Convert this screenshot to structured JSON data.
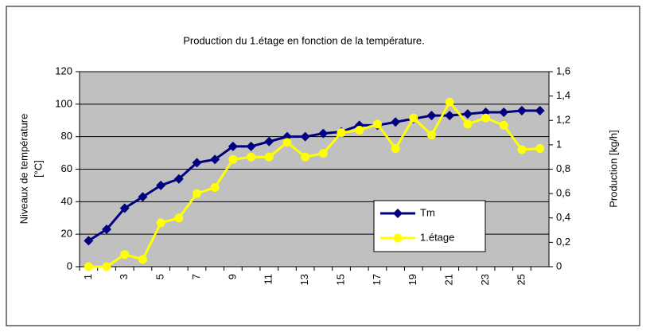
{
  "chart_data": {
    "type": "line",
    "title": "Production du 1.étage en fonction de la température.",
    "ylabel": [
      "Niveaux de température",
      "[°C]"
    ],
    "y2label": "Production [kg/h]",
    "categories": [
      1,
      null,
      3,
      null,
      5,
      null,
      7,
      null,
      9,
      null,
      11,
      null,
      13,
      null,
      15,
      null,
      17,
      null,
      19,
      null,
      21,
      null,
      23,
      null,
      25,
      null
    ],
    "ylim": [
      0,
      120
    ],
    "yticks": [
      0,
      20,
      40,
      60,
      80,
      100,
      120
    ],
    "y2lim": [
      0,
      1.6
    ],
    "y2ticks": [
      0,
      {
        "value": 0.2,
        "label": "0,2"
      },
      {
        "value": 0.4,
        "label": "0,4"
      },
      {
        "value": 0.6,
        "label": "0,6"
      },
      {
        "value": 0.8,
        "label": "0,8"
      },
      1,
      {
        "value": 1.2,
        "label": "1,2"
      },
      {
        "value": 1.4,
        "label": "1,4"
      },
      {
        "value": 1.6,
        "label": "1,6"
      }
    ],
    "grid": true,
    "series": [
      {
        "name": "Tm",
        "color": "#000080",
        "marker": "diamond",
        "values": [
          16,
          23,
          36,
          43,
          50,
          54,
          64,
          66,
          74,
          74,
          77,
          80,
          80,
          82,
          83,
          87,
          87,
          89,
          91,
          93,
          93,
          94,
          95,
          95,
          96,
          96
        ]
      },
      {
        "name": "1.étage",
        "color": "#ffff00",
        "marker": "circle",
        "axis": "y2",
        "values": [
          0,
          0,
          0.1,
          0.06,
          0.36,
          0.4,
          0.6,
          0.65,
          0.88,
          0.9,
          0.9,
          1.02,
          0.9,
          0.93,
          1.1,
          1.12,
          1.17,
          0.97,
          1.22,
          1.08,
          1.35,
          1.17,
          1.22,
          1.16,
          0.96,
          0.97
        ]
      }
    ]
  }
}
